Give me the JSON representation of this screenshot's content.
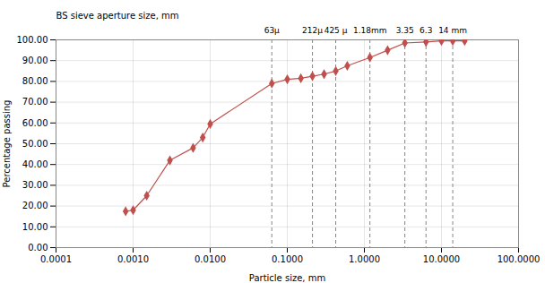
{
  "chart_data": {
    "type": "line",
    "x": [
      0.0008,
      0.001,
      0.0015,
      0.003,
      0.006,
      0.008,
      0.01,
      0.063,
      0.1,
      0.15,
      0.212,
      0.3,
      0.425,
      0.6,
      1.18,
      2.0,
      3.35,
      6.3,
      10.0,
      14.0,
      20.0
    ],
    "values": [
      17.5,
      18.0,
      25.0,
      42.0,
      48.0,
      53.0,
      59.5,
      79.0,
      81.0,
      81.5,
      82.5,
      83.5,
      85.0,
      87.5,
      91.5,
      95.0,
      98.5,
      99.0,
      99.5,
      99.5,
      99.5
    ],
    "color": "#c0504d",
    "marker": "diamond",
    "log": "x",
    "grid": true,
    "xlabel": "Particle size, mm",
    "ylabel": "Percentage passing",
    "annotation": "BS sieve aperture size, mm",
    "sieve_lines": [
      {
        "x": 0.063,
        "label": "63μ"
      },
      {
        "x": 0.212,
        "label": "212μ"
      },
      {
        "x": 0.425,
        "label": "425 μ"
      },
      {
        "x": 1.18,
        "label": "1.18mm"
      },
      {
        "x": 3.35,
        "label": "3.35"
      },
      {
        "x": 6.3,
        "label": "6.3"
      },
      {
        "x": 14.0,
        "label": "14 mm"
      }
    ],
    "xlim": [
      0.0001,
      100.0
    ],
    "ylim": [
      0.0,
      100.0
    ],
    "xticks": [
      0.0001,
      {
        "value": 0.001,
        "label": "0.0010"
      },
      {
        "value": 0.01,
        "label": "0.0100"
      },
      {
        "value": 0.1,
        "label": "0.1000"
      },
      {
        "value": 1.0,
        "label": "1.0000"
      },
      {
        "value": 10.0,
        "label": "10.0000"
      },
      {
        "value": 100.0,
        "label": "100.0000"
      }
    ],
    "yticks": [
      {
        "value": 0,
        "label": "0.00"
      },
      {
        "value": 10,
        "label": "10.00"
      },
      {
        "value": 20,
        "label": "20.00"
      },
      {
        "value": 30,
        "label": "30.00"
      },
      {
        "value": 40,
        "label": "40.00"
      },
      {
        "value": 50,
        "label": "50.00"
      },
      {
        "value": 60,
        "label": "60.00"
      },
      {
        "value": 70,
        "label": "70.00"
      },
      {
        "value": 80,
        "label": "80.00"
      },
      {
        "value": 90,
        "label": "90.00"
      },
      {
        "value": 100,
        "label": "100.00"
      }
    ]
  }
}
